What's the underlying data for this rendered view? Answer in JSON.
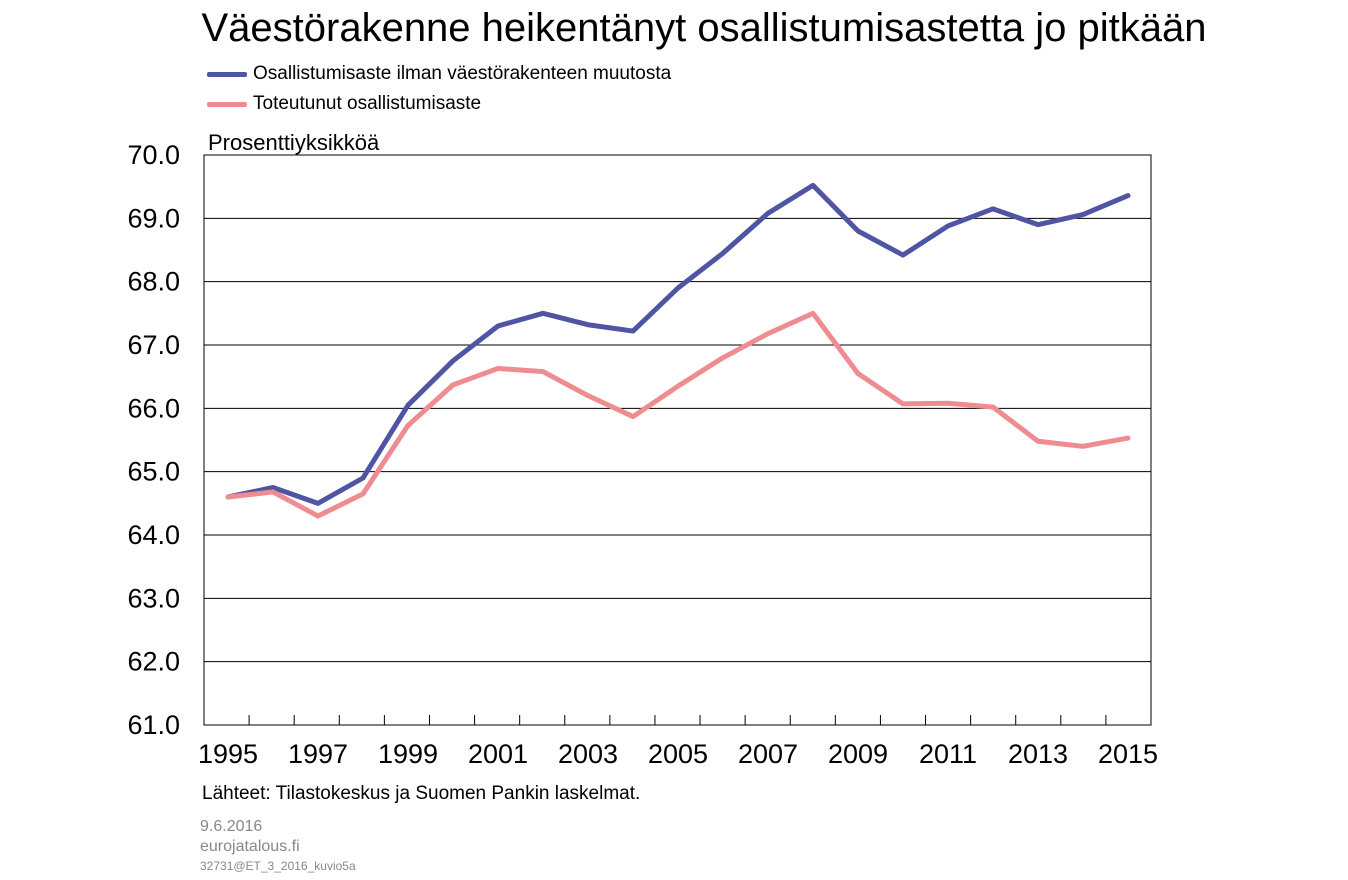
{
  "chart_data": {
    "type": "line",
    "title": "Väestörakenne heikentänyt osallistumisastetta jo pitkään",
    "ylabel": "Prosenttiyksikköä",
    "xlabel": "",
    "ylim": [
      61.0,
      70.0
    ],
    "y_ticks": [
      "61.0",
      "62.0",
      "63.0",
      "64.0",
      "65.0",
      "66.0",
      "67.0",
      "68.0",
      "69.0",
      "70.0"
    ],
    "x": [
      1995,
      1996,
      1997,
      1998,
      1999,
      2000,
      2001,
      2002,
      2003,
      2004,
      2005,
      2006,
      2007,
      2008,
      2009,
      2010,
      2011,
      2012,
      2013,
      2014,
      2015
    ],
    "x_tick_labels": [
      "1995",
      "1997",
      "1999",
      "2001",
      "2003",
      "2005",
      "2007",
      "2009",
      "2011",
      "2013",
      "2015"
    ],
    "grid": "horizontal",
    "legend_position": "top-left",
    "series": [
      {
        "name": "Osallistumisaste ilman väestörakenteen muutosta",
        "color": "#4f55a2",
        "values": [
          64.6,
          64.75,
          64.5,
          64.9,
          66.05,
          66.75,
          67.3,
          67.5,
          67.32,
          67.22,
          67.9,
          68.45,
          69.08,
          69.52,
          68.8,
          68.42,
          68.88,
          69.15,
          68.9,
          69.06,
          69.36
        ]
      },
      {
        "name": "Toteutunut osallistumisaste",
        "color": "#ef8c90",
        "values": [
          64.6,
          64.68,
          64.3,
          64.65,
          65.73,
          66.37,
          66.63,
          66.58,
          66.2,
          65.87,
          66.35,
          66.8,
          67.18,
          67.5,
          66.55,
          66.07,
          66.08,
          66.02,
          65.48,
          65.4,
          65.53
        ]
      }
    ]
  },
  "source": "Lähteet: Tilastokeskus ja Suomen Pankin laskelmat.",
  "footer": {
    "date": "9.6.2016",
    "site": "eurojatalous.fi",
    "id": "32731@ET_3_2016_kuvio5a"
  }
}
